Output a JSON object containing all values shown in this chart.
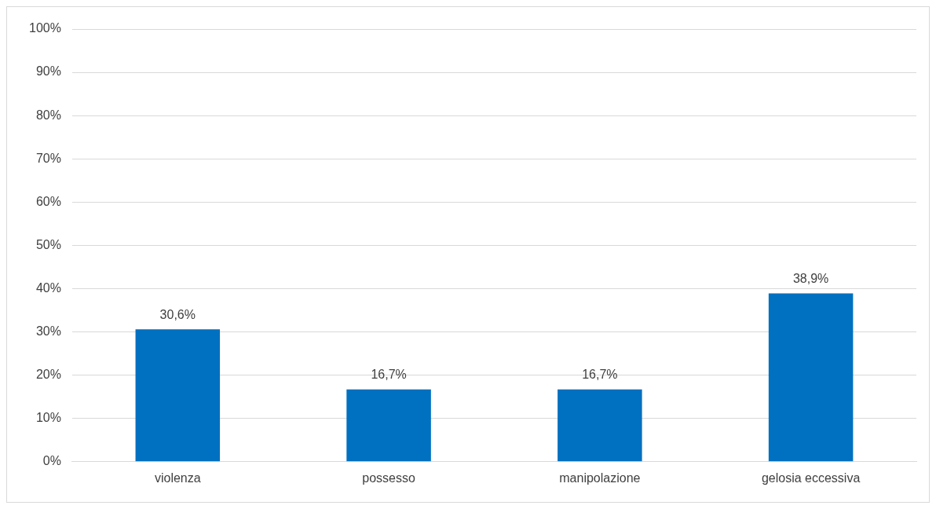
{
  "chart_data": {
    "type": "bar",
    "categories": [
      "violenza",
      "possesso",
      "manipolazione",
      "gelosia eccessiva"
    ],
    "values": [
      30.6,
      16.7,
      16.7,
      38.9
    ],
    "value_labels": [
      "30,6%",
      "16,7%",
      "16,7%",
      "38,9%"
    ],
    "color": "#0070c0",
    "ylim": [
      0,
      100
    ],
    "yticks": [
      {
        "value": 0,
        "label": "0%"
      },
      {
        "value": 10,
        "label": "10%"
      },
      {
        "value": 20,
        "label": "20%"
      },
      {
        "value": 30,
        "label": "30%"
      },
      {
        "value": 40,
        "label": "40%"
      },
      {
        "value": 50,
        "label": "50%"
      },
      {
        "value": 60,
        "label": "60%"
      },
      {
        "value": 70,
        "label": "70%"
      },
      {
        "value": 80,
        "label": "80%"
      },
      {
        "value": 90,
        "label": "90%"
      },
      {
        "value": 100,
        "label": "100%"
      }
    ],
    "grid": "y",
    "legend": false
  }
}
